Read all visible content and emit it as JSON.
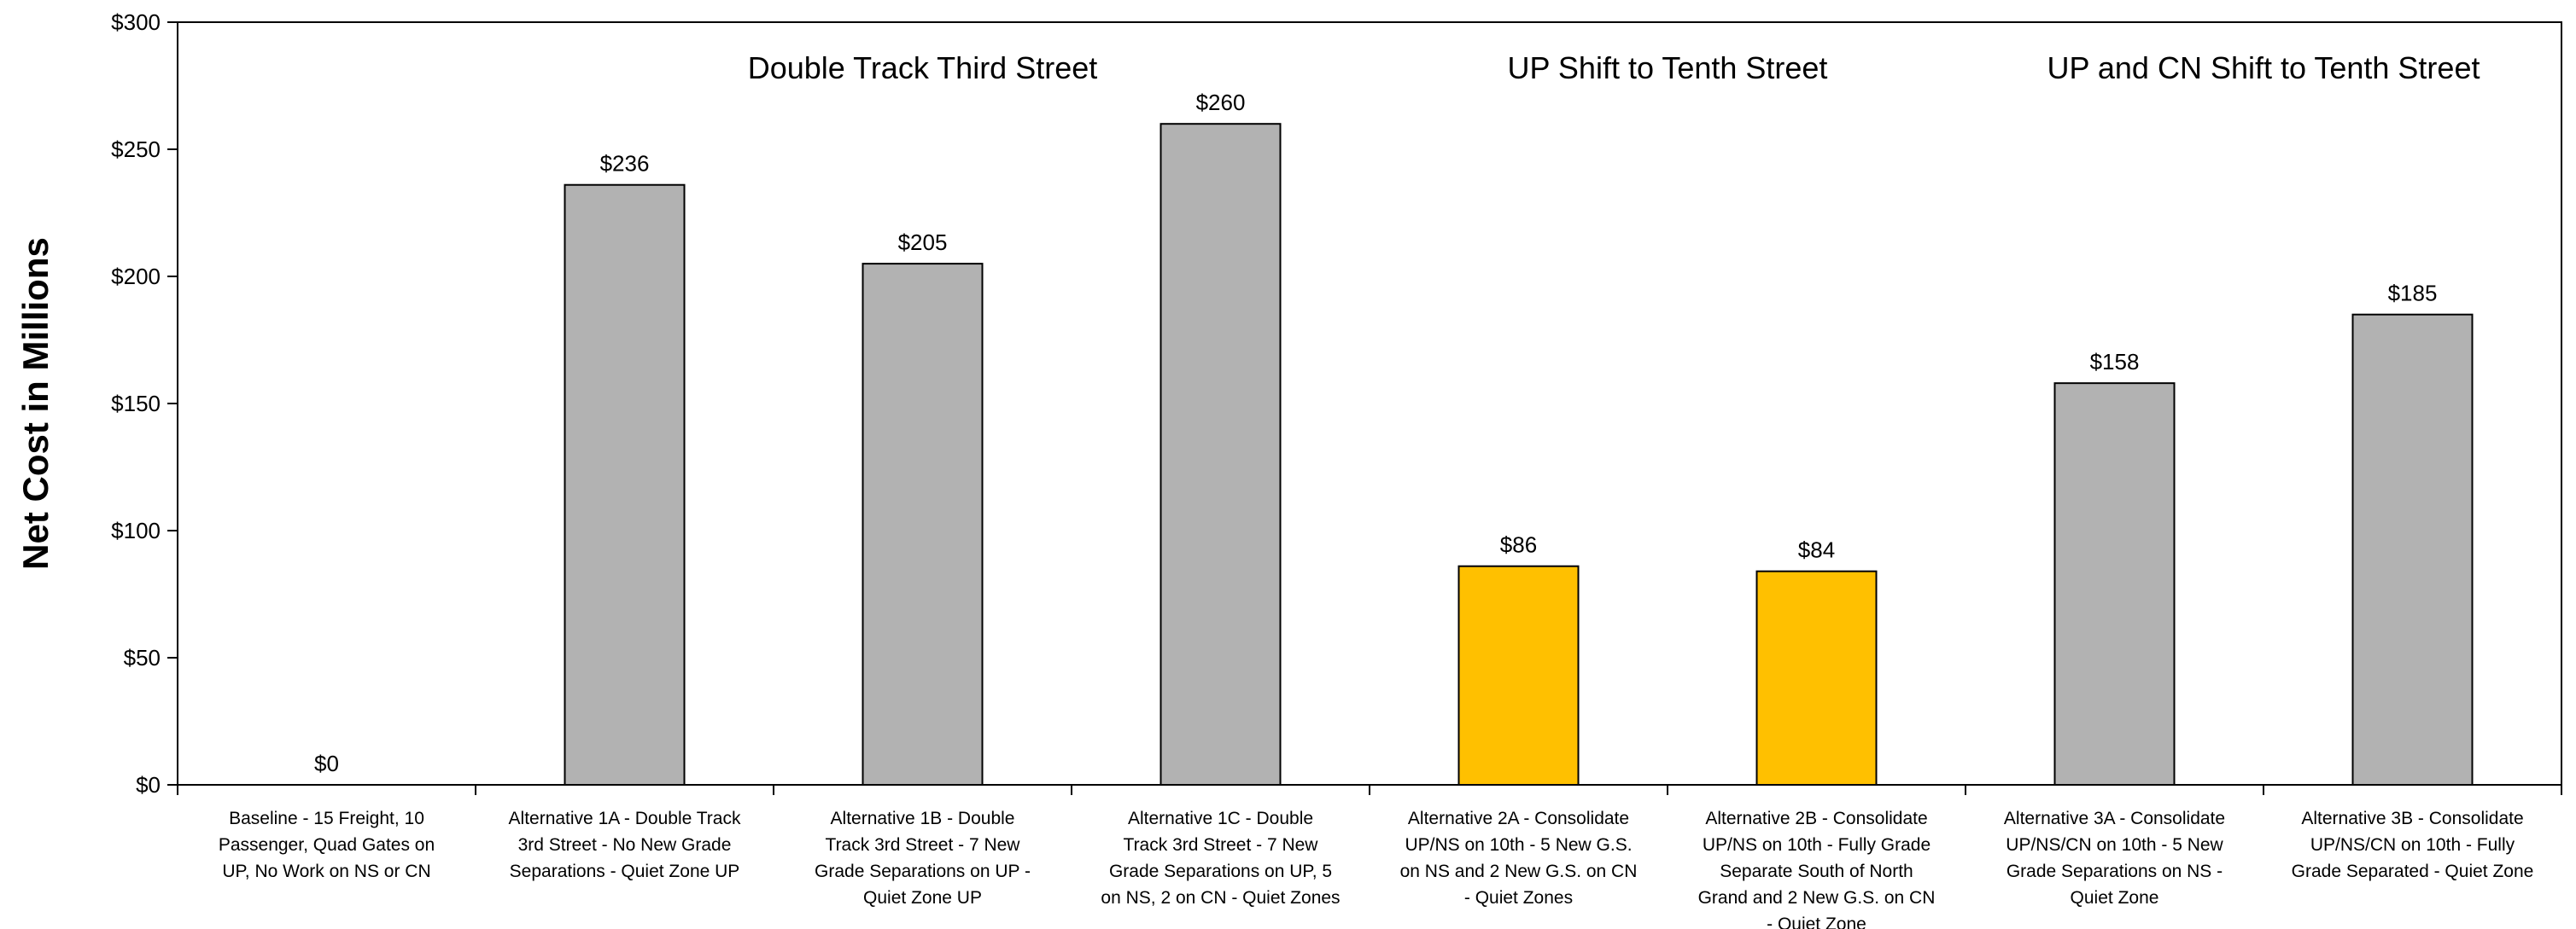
{
  "chart_data": {
    "type": "bar",
    "ylabel": "Net Cost in Millions",
    "ylim": [
      0,
      300
    ],
    "yticks": [
      0,
      50,
      100,
      150,
      200,
      250,
      300
    ],
    "ytick_labels": [
      "$0",
      "$50",
      "$100",
      "$150",
      "$200",
      "$250",
      "$300"
    ],
    "grid": false,
    "categories": [
      [
        "Baseline - 15 Freight, 10",
        "Passenger, Quad Gates on",
        "UP, No Work on NS or CN"
      ],
      [
        "Alternative 1A - Double Track",
        "3rd Street  -  No New Grade",
        "Separations - Quiet Zone UP"
      ],
      [
        "Alternative 1B  -  Double",
        "Track 3rd Street  -  7 New",
        "Grade Separations on UP -",
        "Quiet Zone UP"
      ],
      [
        "Alternative 1C  -  Double",
        "Track 3rd Street  -  7 New",
        "Grade Separations on UP, 5",
        "on NS, 2 on CN - Quiet Zones"
      ],
      [
        "Alternative 2A - Consolidate",
        "UP/NS on 10th - 5 New G.S.",
        "on NS and 2 New G.S. on CN",
        "- Quiet Zones"
      ],
      [
        "Alternative 2B - Consolidate",
        "UP/NS on 10th - Fully Grade",
        "Separate South of North",
        "Grand and 2 New G.S. on CN",
        "- Quiet Zone"
      ],
      [
        "Alternative 3A - Consolidate",
        "UP/NS/CN on 10th - 5 New",
        "Grade Separations on NS -",
        "Quiet Zone"
      ],
      [
        "Alternative 3B - Consolidate",
        "UP/NS/CN on 10th - Fully",
        "Grade Separated - Quiet Zone"
      ]
    ],
    "values": [
      0,
      236,
      205,
      260,
      86,
      84,
      158,
      185
    ],
    "data_labels": [
      "$0",
      "$236",
      "$205",
      "$260",
      "$86",
      "$84",
      "$158",
      "$185"
    ],
    "bar_colors": [
      "#b2b2b2",
      "#b2b2b2",
      "#b2b2b2",
      "#b2b2b2",
      "#ffc000",
      "#ffc000",
      "#b2b2b2",
      "#b2b2b2"
    ],
    "annotations": [
      {
        "text": "Double Track Third Street",
        "spans": [
          1,
          3
        ]
      },
      {
        "text": "UP Shift to Tenth Street",
        "spans": [
          4,
          5
        ]
      },
      {
        "text": "UP and CN Shift to Tenth Street",
        "spans": [
          6,
          7
        ]
      }
    ]
  }
}
